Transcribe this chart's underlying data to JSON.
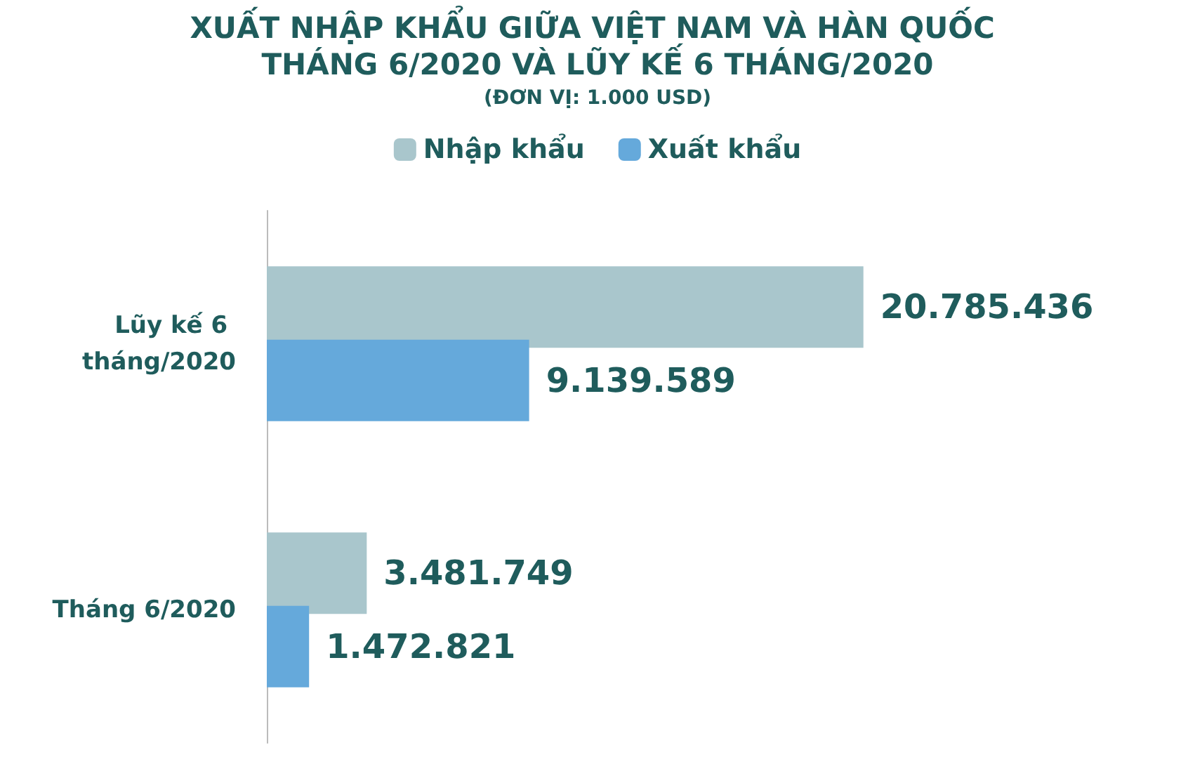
{
  "chart_data": {
    "type": "bar",
    "orientation": "horizontal",
    "title": "XUẤT NHẬP KHẨU GIỮA VIỆT NAM VÀ HÀN QUỐC THÁNG 6/2020 VÀ LŨY KẾ 6 THÁNG/2020",
    "subtitle": "(ĐƠN VỊ: 1.000 USD)",
    "categories": [
      "Lũy kế 6 tháng/2020",
      "Tháng 6/2020"
    ],
    "series": [
      {
        "name": "Nhập khẩu",
        "color": "#a9c6cc",
        "values": [
          20785436,
          3481749
        ],
        "value_labels": [
          "20.785.436",
          "3.481.749"
        ]
      },
      {
        "name": "Xuất khẩu",
        "color": "#65a9db",
        "values": [
          9139589,
          1472821
        ],
        "value_labels": [
          "9.139.589",
          "1.472.821"
        ]
      }
    ],
    "legend": "top"
  }
}
